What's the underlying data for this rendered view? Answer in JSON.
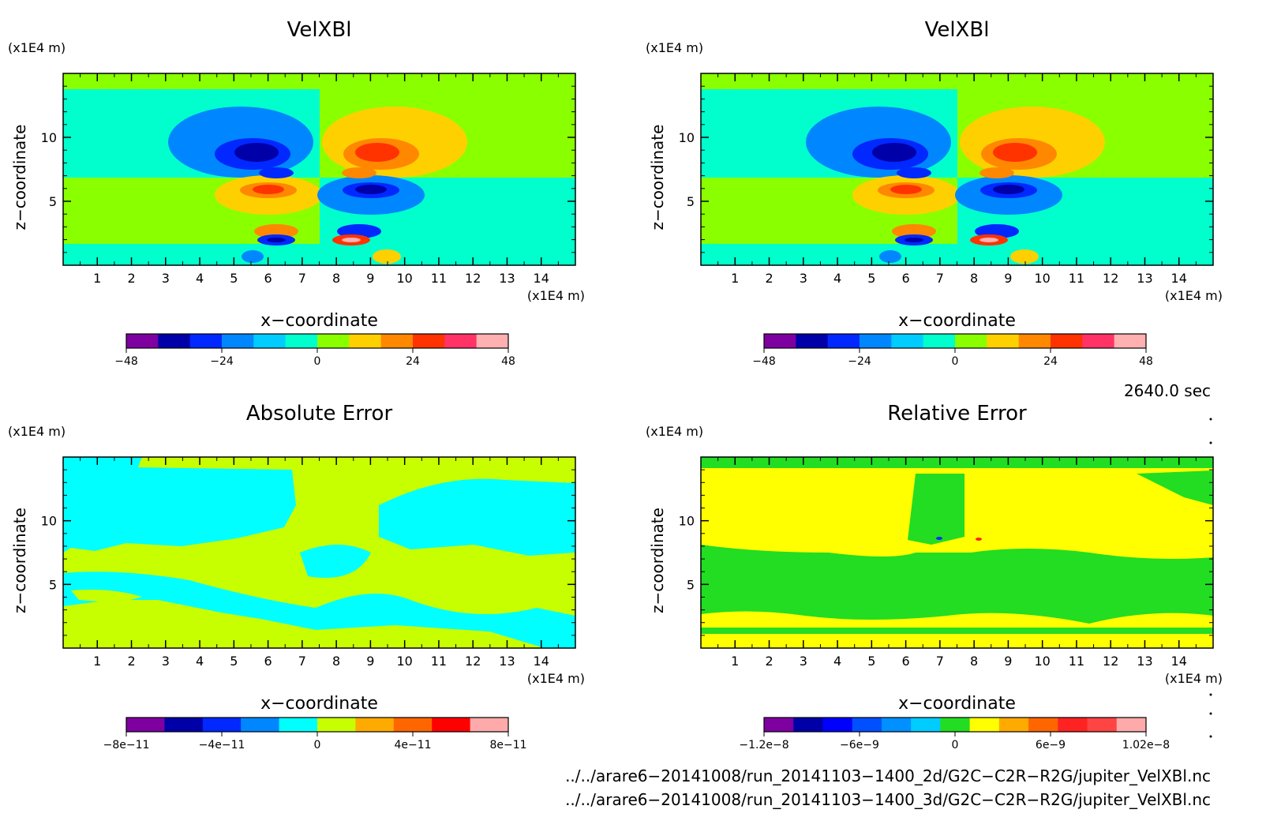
{
  "chart_data": [
    {
      "type": "heatmap",
      "title": "VelXBl",
      "xlabel": "x−coordinate",
      "ylabel": "z−coordinate",
      "x_unit": "(x1E4 m)",
      "y_unit": "(x1E4 m)",
      "xlim": [
        0,
        15
      ],
      "ylim": [
        0,
        15
      ],
      "x_ticks": [
        "1",
        "2",
        "3",
        "4",
        "5",
        "6",
        "7",
        "8",
        "9",
        "10",
        "11",
        "12",
        "13",
        "14"
      ],
      "y_ticks": [
        "5",
        "10"
      ],
      "colorbar": {
        "colors": [
          "#7f00a0",
          "#0000a8",
          "#0028ff",
          "#0087ff",
          "#00ccff",
          "#00ffcc",
          "#8aff00",
          "#ffd000",
          "#ff8800",
          "#ff3300",
          "#ff3366",
          "#ffb0b0"
        ],
        "labels": [
          "−48",
          "−24",
          "0",
          "24",
          "48"
        ],
        "range": [
          -48,
          48
        ]
      },
      "fields": [
        "velocity"
      ]
    },
    {
      "type": "heatmap",
      "title": "VelXBl",
      "xlabel": "x−coordinate",
      "ylabel": "z−coordinate",
      "x_unit": "(x1E4 m)",
      "y_unit": "(x1E4 m)",
      "xlim": [
        0,
        15
      ],
      "ylim": [
        0,
        15
      ],
      "x_ticks": [
        "1",
        "2",
        "3",
        "4",
        "5",
        "6",
        "7",
        "8",
        "9",
        "10",
        "11",
        "12",
        "13",
        "14"
      ],
      "y_ticks": [
        "5",
        "10"
      ],
      "colorbar": {
        "colors": [
          "#7f00a0",
          "#0000a8",
          "#0028ff",
          "#0087ff",
          "#00ccff",
          "#00ffcc",
          "#8aff00",
          "#ffd000",
          "#ff8800",
          "#ff3300",
          "#ff3366",
          "#ffb0b0"
        ],
        "labels": [
          "−48",
          "−24",
          "0",
          "24",
          "48"
        ],
        "range": [
          -48,
          48
        ]
      },
      "fields": [
        "velocity"
      ]
    },
    {
      "type": "heatmap",
      "title": "Absolute Error",
      "xlabel": "x−coordinate",
      "ylabel": "z−coordinate",
      "x_unit": "(x1E4 m)",
      "y_unit": "(x1E4 m)",
      "xlim": [
        0,
        15
      ],
      "ylim": [
        0,
        15
      ],
      "x_ticks": [
        "1",
        "2",
        "3",
        "4",
        "5",
        "6",
        "7",
        "8",
        "9",
        "10",
        "11",
        "12",
        "13",
        "14"
      ],
      "y_ticks": [
        "5",
        "10"
      ],
      "colorbar": {
        "colors": [
          "#7f00a0",
          "#0000a8",
          "#0028ff",
          "#0087ff",
          "#00ffff",
          "#c8ff00",
          "#ffaa00",
          "#ff6600",
          "#ff0000",
          "#ffaaaa"
        ],
        "labels": [
          "−8e−11",
          "−4e−11",
          "0",
          "4e−11",
          "8e−11"
        ],
        "range": [
          -1e-10,
          1e-10
        ]
      },
      "fields": [
        "abs_error"
      ]
    },
    {
      "type": "heatmap",
      "title": "Relative Error",
      "xlabel": "x−coordinate",
      "ylabel": "z−coordinate",
      "x_unit": "(x1E4 m)",
      "y_unit": "(x1E4 m)",
      "xlim": [
        0,
        15
      ],
      "ylim": [
        0,
        15
      ],
      "x_ticks": [
        "1",
        "2",
        "3",
        "4",
        "5",
        "6",
        "7",
        "8",
        "9",
        "10",
        "11",
        "12",
        "13",
        "14"
      ],
      "y_ticks": [
        "5",
        "10"
      ],
      "colorbar": {
        "colors": [
          "#7f00a0",
          "#0000a8",
          "#0000ff",
          "#0050ff",
          "#0090ff",
          "#00ccff",
          "#22dd22",
          "#ffff00",
          "#ffaa00",
          "#ff6600",
          "#ff2222",
          "#ff4444",
          "#ffaaaa"
        ],
        "labels": [
          "−1.2e−8",
          "−6e−9",
          "0",
          "6e−9",
          "1.02e−8"
        ],
        "range": [
          -1.2e-08,
          1.02e-08
        ]
      },
      "fields": [
        "rel_error"
      ]
    }
  ],
  "time_label": "2640.0 sec",
  "file_lines": [
    "../../arare6−20141008/run_20141103−1400_2d/G2C−C2R−R2G/jupiter_VelXBl.nc",
    "../../arare6−20141008/run_20141103−1400_3d/G2C−C2R−R2G/jupiter_VelXBl.nc"
  ]
}
